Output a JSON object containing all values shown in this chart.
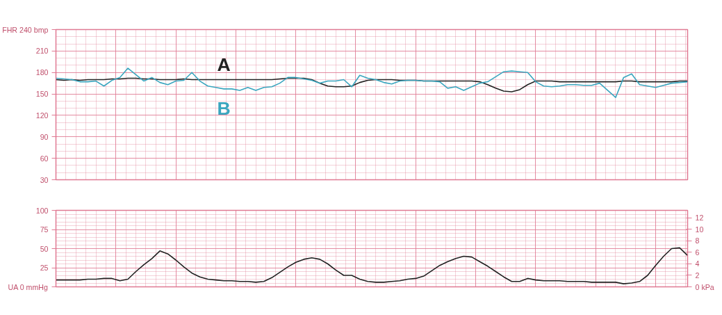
{
  "chart_data": [
    {
      "type": "line",
      "categories": [
        null,
        null,
        null,
        null,
        null,
        null,
        null,
        null,
        null,
        null,
        null,
        null,
        null,
        null,
        null,
        null,
        null,
        null,
        null,
        null,
        null,
        null,
        null,
        null,
        null,
        null,
        null,
        null,
        null,
        null,
        null,
        null,
        null,
        null,
        null,
        null,
        null,
        null,
        null,
        null,
        null,
        null,
        null,
        null,
        null,
        null,
        null,
        null,
        null,
        null,
        null,
        null,
        null,
        null,
        null,
        null,
        null,
        null,
        null,
        null,
        null,
        null,
        null,
        null,
        null,
        null,
        null,
        null,
        null,
        null,
        null,
        null,
        null,
        null,
        null,
        null,
        null,
        null,
        null,
        null
      ],
      "series": [
        {
          "name": "A",
          "color": "#222222",
          "values": [
            170,
            169,
            170,
            169,
            170,
            170,
            170,
            171,
            171,
            172,
            172,
            171,
            171,
            170,
            170,
            170,
            171,
            170,
            170,
            170,
            170,
            170,
            170,
            170,
            170,
            170,
            170,
            170,
            171,
            172,
            172,
            172,
            170,
            165,
            161,
            160,
            160,
            161,
            166,
            169,
            170,
            170,
            170,
            169,
            169,
            169,
            168,
            168,
            168,
            168,
            168,
            168,
            168,
            167,
            163,
            158,
            154,
            153,
            156,
            163,
            168,
            168,
            168,
            167,
            167,
            167,
            167,
            167,
            167,
            167,
            167,
            168,
            168,
            167,
            167,
            167,
            167,
            167,
            168,
            168
          ]
        },
        {
          "name": "B",
          "color": "#3aa6bf",
          "values": [
            172,
            171,
            170,
            167,
            167,
            168,
            161,
            169,
            173,
            186,
            177,
            168,
            173,
            166,
            163,
            168,
            169,
            180,
            168,
            161,
            159,
            157,
            157,
            155,
            159,
            155,
            159,
            160,
            165,
            173,
            173,
            171,
            169,
            165,
            168,
            168,
            170,
            160,
            176,
            172,
            170,
            166,
            164,
            168,
            169,
            169,
            168,
            168,
            167,
            158,
            160,
            155,
            160,
            165,
            167,
            174,
            181,
            182,
            181,
            180,
            167,
            161,
            160,
            161,
            163,
            163,
            162,
            162,
            165,
            155,
            145,
            173,
            178,
            163,
            161,
            159,
            162,
            165,
            166,
            167
          ]
        }
      ],
      "ylim": [
        30,
        240
      ],
      "yticks": [
        {
          "value": 240,
          "label": "FHR 240 bmp"
        },
        210,
        180,
        150,
        120,
        90,
        60,
        30
      ],
      "grid": true
    },
    {
      "type": "line",
      "categories": [
        null,
        null,
        null,
        null,
        null,
        null,
        null,
        null,
        null,
        null,
        null,
        null,
        null,
        null,
        null,
        null,
        null,
        null,
        null,
        null,
        null,
        null,
        null,
        null,
        null,
        null,
        null,
        null,
        null,
        null,
        null,
        null,
        null,
        null,
        null,
        null,
        null,
        null,
        null,
        null,
        null,
        null,
        null,
        null,
        null,
        null,
        null,
        null,
        null,
        null,
        null,
        null,
        null,
        null,
        null,
        null,
        null,
        null,
        null,
        null,
        null,
        null,
        null,
        null,
        null,
        null,
        null,
        null,
        null,
        null,
        null,
        null,
        null,
        null,
        null,
        null,
        null,
        null,
        null,
        null
      ],
      "series": [
        {
          "color": "#222222",
          "values": [
            9,
            9,
            9,
            9,
            10,
            10,
            11,
            11,
            8,
            10,
            20,
            29,
            37,
            47,
            43,
            35,
            26,
            18,
            13,
            10,
            9,
            8,
            8,
            7,
            7,
            6,
            7,
            12,
            19,
            26,
            32,
            36,
            38,
            36,
            30,
            22,
            15,
            15,
            10,
            7,
            6,
            6,
            7,
            8,
            10,
            11,
            14,
            21,
            28,
            33,
            37,
            40,
            39,
            33,
            27,
            20,
            13,
            7,
            7,
            11,
            9,
            8,
            8,
            8,
            7,
            7,
            7,
            6,
            6,
            6,
            6,
            4,
            5,
            7,
            15,
            28,
            40,
            50,
            51,
            41
          ]
        }
      ],
      "ylim": [
        0,
        100
      ],
      "yticks": [
        100,
        75,
        50,
        25,
        {
          "value": 0,
          "label": "UA 0 mmHg"
        }
      ],
      "y2lim": [
        0,
        13.3
      ],
      "y2ticks": [
        12,
        10,
        8,
        6,
        4,
        2,
        {
          "value": 0,
          "label": "0 kPa"
        }
      ],
      "grid": true
    }
  ]
}
